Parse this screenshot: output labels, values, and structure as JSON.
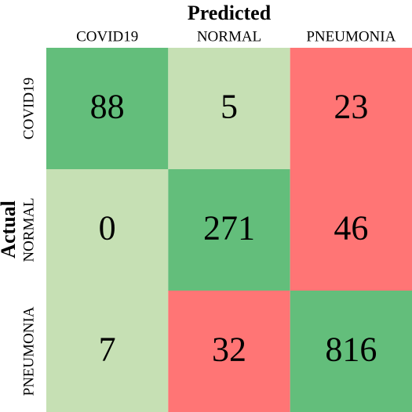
{
  "chart_data": {
    "type": "heatmap",
    "xlabel": "Predicted",
    "ylabel": "Actual",
    "x_categories": [
      "COVID19",
      "NORMAL",
      "PNEUMONIA"
    ],
    "y_categories": [
      "COVID19",
      "NORMAL",
      "PNEUMONIA"
    ],
    "values": [
      [
        88,
        5,
        23
      ],
      [
        0,
        271,
        46
      ],
      [
        7,
        32,
        816
      ]
    ],
    "colors": [
      [
        "#63be7b",
        "#c6e0b4",
        "#ff7575"
      ],
      [
        "#c6e0b4",
        "#63be7b",
        "#ff7575"
      ],
      [
        "#c6e0b4",
        "#ff7575",
        "#63be7b"
      ]
    ]
  }
}
